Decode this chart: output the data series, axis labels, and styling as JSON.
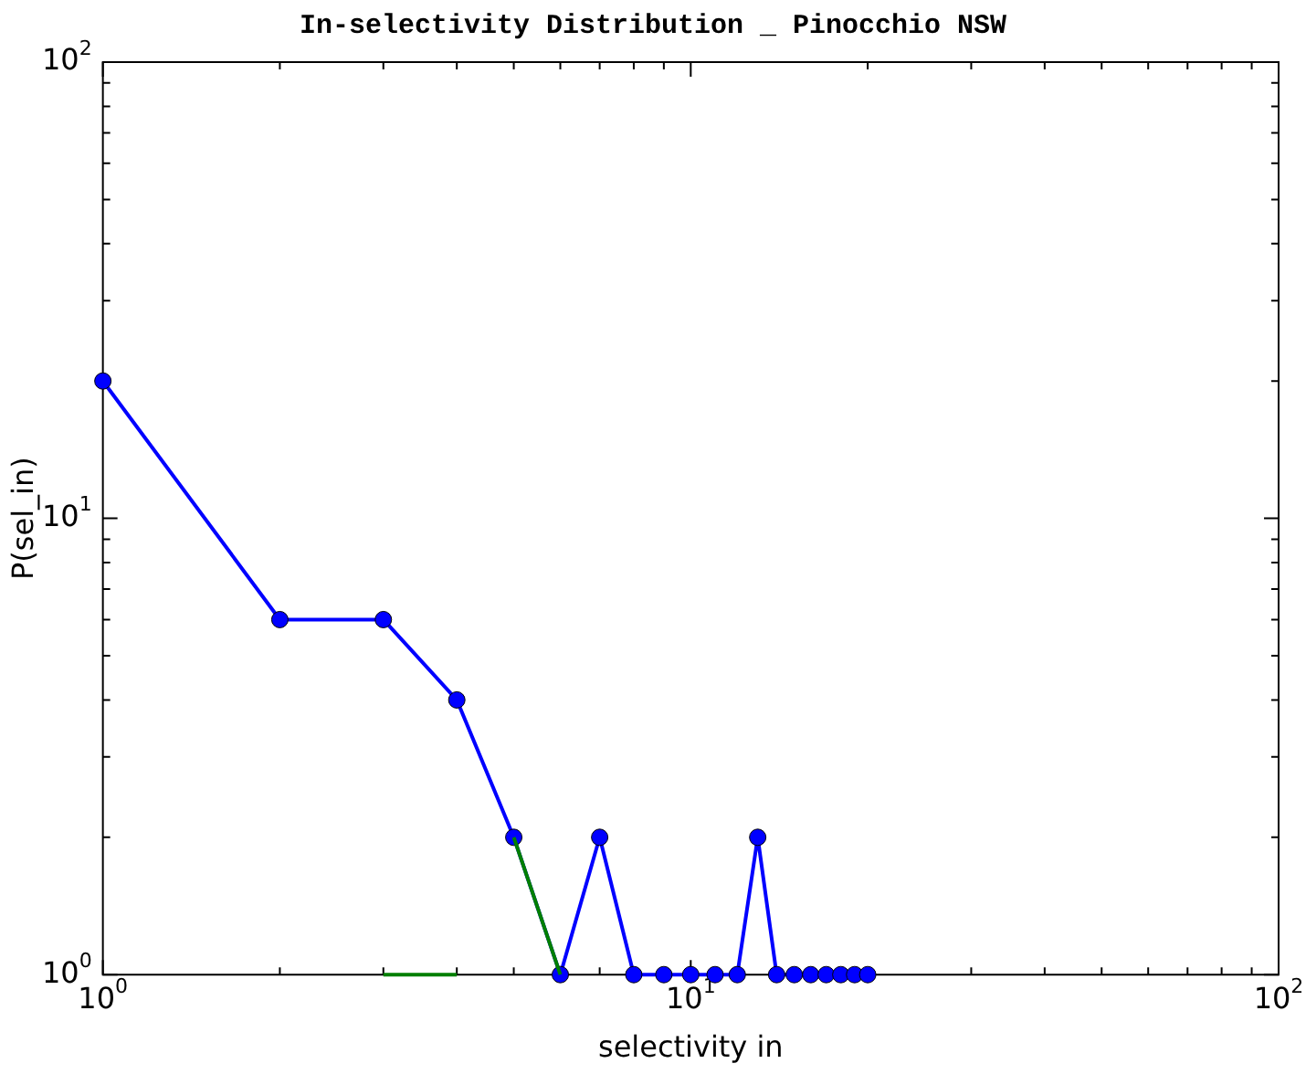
{
  "chart_data": {
    "type": "line",
    "title": "In-selectivity Distribution _ Pinocchio NSW",
    "xlabel": "selectivity in",
    "ylabel": "P(sel_in)",
    "log": "xy",
    "grid": false,
    "marker": "circle",
    "line_style": "solid",
    "xlim": [
      1,
      100
    ],
    "ylim": [
      1,
      100
    ],
    "xticks": [
      {
        "value": 1,
        "label": "10$^{0}$"
      },
      {
        "value": 2,
        "label": null
      },
      {
        "value": 3,
        "label": null
      },
      {
        "value": 4,
        "label": null
      },
      {
        "value": 5,
        "label": null
      },
      {
        "value": 6,
        "label": null
      },
      {
        "value": 7,
        "label": null
      },
      {
        "value": 8,
        "label": null
      },
      {
        "value": 9,
        "label": null
      },
      {
        "value": 10,
        "label": "10$^{1}$"
      },
      {
        "value": 20,
        "label": null
      },
      {
        "value": 30,
        "label": null
      },
      {
        "value": 40,
        "label": null
      },
      {
        "value": 50,
        "label": null
      },
      {
        "value": 60,
        "label": null
      },
      {
        "value": 70,
        "label": null
      },
      {
        "value": 80,
        "label": null
      },
      {
        "value": 90,
        "label": null
      },
      {
        "value": 100,
        "label": "10$^{2}$"
      }
    ],
    "yticks": [
      {
        "value": 1,
        "label": "10$^{0}$"
      },
      {
        "value": 2,
        "label": null
      },
      {
        "value": 3,
        "label": null
      },
      {
        "value": 4,
        "label": null
      },
      {
        "value": 5,
        "label": null
      },
      {
        "value": 6,
        "label": null
      },
      {
        "value": 7,
        "label": null
      },
      {
        "value": 8,
        "label": null
      },
      {
        "value": 9,
        "label": null
      },
      {
        "value": 10,
        "label": "10$^{1}$"
      },
      {
        "value": 20,
        "label": null
      },
      {
        "value": 30,
        "label": null
      },
      {
        "value": 40,
        "label": null
      },
      {
        "value": 50,
        "label": null
      },
      {
        "value": 60,
        "label": null
      },
      {
        "value": 70,
        "label": null
      },
      {
        "value": 80,
        "label": null
      },
      {
        "value": 90,
        "label": null
      },
      {
        "value": 100,
        "label": "10$^{2}$"
      }
    ],
    "series": [
      {
        "color": "#007f00",
        "marker": "none",
        "x": [
          3,
          4,
          4.5,
          5,
          6
        ],
        "values": [
          1,
          1,
          null,
          2,
          1
        ]
      },
      {
        "color": "#0000ff",
        "x": [
          1,
          2,
          3,
          4,
          5,
          6,
          7,
          8,
          9,
          10,
          11,
          12,
          13,
          14,
          15,
          16,
          17,
          18,
          19,
          20
        ],
        "values": [
          20,
          6,
          6,
          4,
          2,
          1,
          2,
          1,
          1,
          1,
          1,
          1,
          2,
          1,
          1,
          1,
          1,
          1,
          1,
          1
        ]
      }
    ]
  }
}
